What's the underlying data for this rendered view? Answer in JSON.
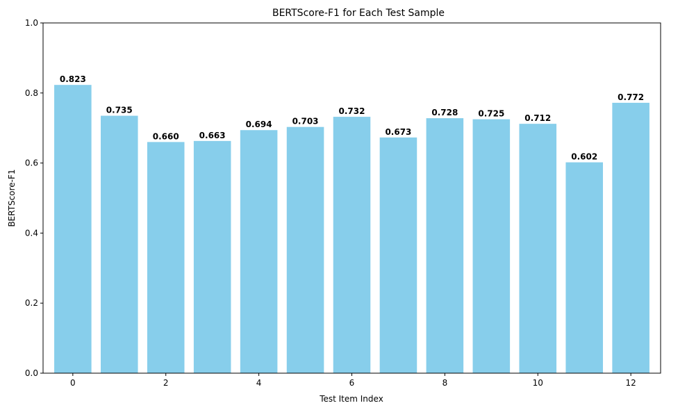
{
  "chart_data": {
    "type": "bar",
    "title": "BERTScore-F1 for Each Test Sample",
    "xlabel": "Test Item Index",
    "ylabel": "BERTScore-F1",
    "categories": [
      0,
      1,
      2,
      3,
      4,
      5,
      6,
      7,
      8,
      9,
      10,
      11,
      12
    ],
    "values": [
      0.823,
      0.735,
      0.66,
      0.663,
      0.694,
      0.703,
      0.732,
      0.673,
      0.728,
      0.725,
      0.712,
      0.602,
      0.772
    ],
    "value_labels": [
      "0.823",
      "0.735",
      "0.660",
      "0.663",
      "0.694",
      "0.703",
      "0.732",
      "0.673",
      "0.728",
      "0.725",
      "0.712",
      "0.602",
      "0.772"
    ],
    "ylim": [
      0,
      1
    ],
    "xlim": [
      -0.64,
      12.64
    ],
    "yticks": [
      0.0,
      0.2,
      0.4,
      0.6,
      0.8,
      1.0
    ],
    "ytick_labels": [
      "0.0",
      "0.2",
      "0.4",
      "0.6",
      "0.8",
      "1.0"
    ],
    "xticks": [
      0,
      2,
      4,
      6,
      8,
      10,
      12
    ],
    "xtick_labels": [
      "0",
      "2",
      "4",
      "6",
      "8",
      "10",
      "12"
    ],
    "bar_color": "#87ceeb",
    "grid": false,
    "legend": false
  }
}
